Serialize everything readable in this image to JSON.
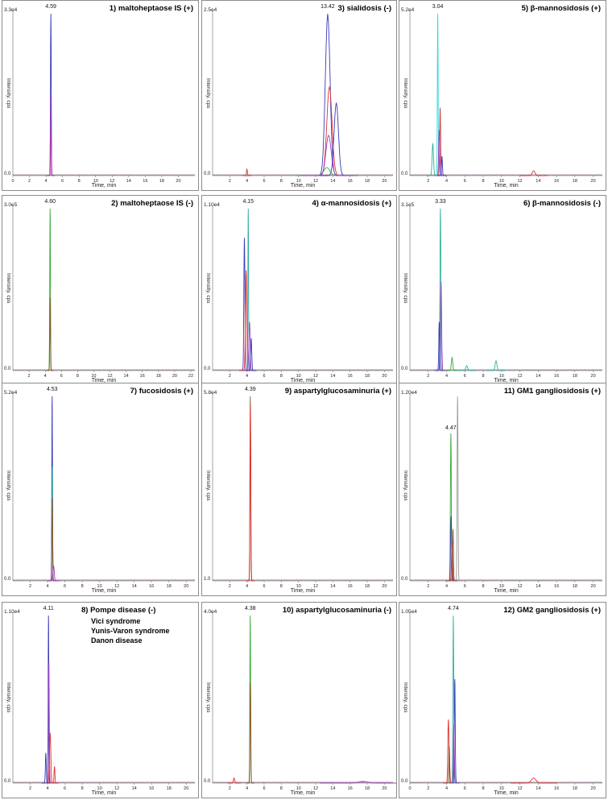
{
  "colors": {
    "blue": "#3a3ab8",
    "red": "#e03030",
    "green": "#3aa83a",
    "purple": "#a040c0",
    "teal": "#30b0a0",
    "cyan": "#30d8d8",
    "brown": "#8a5a2a",
    "gray": "#999999"
  },
  "chart_data": [
    {
      "id": 1,
      "type": "line",
      "title": "1) maltoheptaose IS (+)",
      "xlabel": "Time, min",
      "ylabel": "Intensity, cps",
      "ymax_label": "3.3e4",
      "y0_label": "0.0",
      "peak_label": "4.59",
      "xticks": [
        "0",
        "2",
        "4",
        "6",
        "8",
        "10",
        "12",
        "14",
        "16",
        "18",
        "20"
      ],
      "xlim": [
        0,
        22
      ],
      "peaks": [
        {
          "series": "blue",
          "x": 4.59,
          "y": 1.0,
          "w": 0.09
        },
        {
          "series": "red",
          "x": 4.59,
          "y": 0.35,
          "w": 0.08
        },
        {
          "series": "purple",
          "x": 4.6,
          "y": 0.5,
          "w": 0.08
        }
      ]
    },
    {
      "id": 3,
      "type": "line",
      "title": "3) sialidosis (-)",
      "xlabel": "Time, min",
      "ylabel": "Intensity, cps",
      "ymax_label": "2.5e4",
      "y0_label": "0.0",
      "peak_label": "13.42",
      "xticks": [
        "2",
        "4",
        "6",
        "8",
        "10",
        "12",
        "14",
        "16",
        "18",
        "20"
      ],
      "xlim": [
        0,
        21
      ],
      "peaks": [
        {
          "series": "blue",
          "x": 13.4,
          "y": 1.0,
          "w": 0.55
        },
        {
          "series": "blue",
          "x": 14.4,
          "y": 0.45,
          "w": 0.5
        },
        {
          "series": "red",
          "x": 13.6,
          "y": 0.55,
          "w": 0.6
        },
        {
          "series": "red",
          "x": 4.0,
          "y": 0.04,
          "w": 0.1
        },
        {
          "series": "green",
          "x": 13.3,
          "y": 0.05,
          "w": 0.7
        },
        {
          "series": "purple",
          "x": 13.5,
          "y": 0.25,
          "w": 0.6
        }
      ]
    },
    {
      "id": 5,
      "type": "line",
      "title": "5) β-mannosidosis (+)",
      "xlabel": "Time, min",
      "ylabel": "Intensity, cps",
      "ymax_label": "5.2e4",
      "y0_label": "0.0",
      "peak_label": "3.04",
      "xticks": [
        "2",
        "4",
        "6",
        "8",
        "10",
        "12",
        "14",
        "16",
        "18",
        "20"
      ],
      "xlim": [
        0,
        21
      ],
      "peaks": [
        {
          "series": "cyan",
          "x": 3.04,
          "y": 1.0,
          "w": 0.08
        },
        {
          "series": "teal",
          "x": 2.5,
          "y": 0.2,
          "w": 0.15
        },
        {
          "series": "red",
          "x": 3.3,
          "y": 0.42,
          "w": 0.1
        },
        {
          "series": "purple",
          "x": 3.2,
          "y": 0.28,
          "w": 0.12
        },
        {
          "series": "blue",
          "x": 3.5,
          "y": 0.12,
          "w": 0.1
        },
        {
          "series": "red",
          "x": 13.5,
          "y": 0.03,
          "w": 0.3
        }
      ]
    },
    {
      "id": 2,
      "type": "line",
      "title": "2) maltoheptaose IS (-)",
      "xlabel": "Time, min",
      "ylabel": "Intensity, cps",
      "ymax_label": "3.0e5",
      "y0_label": "0.0",
      "peak_label": "4.60",
      "xticks": [
        "2",
        "4",
        "6",
        "8",
        "10",
        "12",
        "14",
        "16",
        "18",
        "20",
        "22"
      ],
      "xlim": [
        0,
        22.5
      ],
      "peaks": [
        {
          "series": "green",
          "x": 4.6,
          "y": 1.0,
          "w": 0.09
        },
        {
          "series": "brown",
          "x": 4.6,
          "y": 0.45,
          "w": 0.08
        }
      ]
    },
    {
      "id": 4,
      "type": "line",
      "title": "4) α-mannosidosis (+)",
      "xlabel": "Time, min",
      "ylabel": "Intensity, cps",
      "ymax_label": "1.10e4",
      "y0_label": "0.0",
      "peak_label": "4.15",
      "xticks": [
        "2",
        "4",
        "6",
        "8",
        "10",
        "12",
        "14",
        "16",
        "18",
        "20"
      ],
      "xlim": [
        0,
        21
      ],
      "peaks": [
        {
          "series": "teal",
          "x": 4.15,
          "y": 1.0,
          "w": 0.08
        },
        {
          "series": "blue",
          "x": 3.7,
          "y": 0.82,
          "w": 0.12
        },
        {
          "series": "red",
          "x": 3.9,
          "y": 0.62,
          "w": 0.15
        },
        {
          "series": "purple",
          "x": 4.3,
          "y": 0.3,
          "w": 0.15
        },
        {
          "series": "blue",
          "x": 4.5,
          "y": 0.2,
          "w": 0.12
        }
      ]
    },
    {
      "id": 6,
      "type": "line",
      "title": "6) β-mannosidosis (-)",
      "xlabel": "Time, min",
      "ylabel": "Intensity, cps",
      "ymax_label": "3.1e5",
      "y0_label": "0.0",
      "peak_label": "3.33",
      "xticks": [
        "2",
        "4",
        "6",
        "8",
        "10",
        "12",
        "14",
        "16",
        "18",
        "20"
      ],
      "xlim": [
        0,
        21
      ],
      "peaks": [
        {
          "series": "teal",
          "x": 3.33,
          "y": 1.0,
          "w": 0.1
        },
        {
          "series": "purple",
          "x": 3.4,
          "y": 0.55,
          "w": 0.12
        },
        {
          "series": "blue",
          "x": 3.2,
          "y": 0.3,
          "w": 0.1
        },
        {
          "series": "green",
          "x": 4.6,
          "y": 0.08,
          "w": 0.15
        },
        {
          "series": "teal",
          "x": 9.4,
          "y": 0.06,
          "w": 0.2
        },
        {
          "series": "teal",
          "x": 6.2,
          "y": 0.03,
          "w": 0.2
        }
      ]
    },
    {
      "id": 7,
      "type": "line",
      "title": "7) fucosidosis (+)",
      "xlabel": "Time, min",
      "ylabel": "Intensity, cps",
      "ymax_label": "5.2e4",
      "y0_label": "0.0",
      "peak_label": "4.53",
      "xticks": [
        "2",
        "4",
        "6",
        "8",
        "10",
        "12",
        "14",
        "16",
        "18",
        "20"
      ],
      "xlim": [
        0,
        21
      ],
      "peaks": [
        {
          "series": "blue",
          "x": 4.53,
          "y": 1.0,
          "w": 0.08
        },
        {
          "series": "teal",
          "x": 4.55,
          "y": 0.62,
          "w": 0.08
        },
        {
          "series": "brown",
          "x": 4.55,
          "y": 0.45,
          "w": 0.08
        },
        {
          "series": "purple",
          "x": 4.7,
          "y": 0.08,
          "w": 0.15
        }
      ]
    },
    {
      "id": 9,
      "type": "line",
      "title": "9) aspartylglucosaminuria (+)",
      "xlabel": "Time, min",
      "ylabel": "Intensity, cps",
      "ymax_label": "5.8e4",
      "y0_label": "1.0",
      "peak_label": "4.39",
      "xticks": [
        "2",
        "4",
        "6",
        "8",
        "10",
        "12",
        "14",
        "16",
        "18",
        "20"
      ],
      "xlim": [
        0,
        21
      ],
      "peaks": [
        {
          "series": "brown",
          "x": 4.39,
          "y": 1.0,
          "w": 0.09
        },
        {
          "series": "red",
          "x": 4.4,
          "y": 0.95,
          "w": 0.1
        }
      ]
    },
    {
      "id": 11,
      "type": "line",
      "title": "11) GM1 gangliosidosis (+)",
      "xlabel": "Time, min",
      "ylabel": "Intensity, cps",
      "ymax_label": "1.20e4",
      "y0_label": "0.0",
      "peak_label": "4.47",
      "xticks": [
        "2",
        "4",
        "6",
        "8",
        "10",
        "12",
        "14",
        "16",
        "18",
        "20"
      ],
      "xlim": [
        0,
        21
      ],
      "peaks": [
        {
          "series": "gray",
          "x": 5.2,
          "y": 1.0,
          "w": 0.1
        },
        {
          "series": "green",
          "x": 4.47,
          "y": 0.8,
          "w": 0.1
        },
        {
          "series": "blue",
          "x": 4.5,
          "y": 0.35,
          "w": 0.12
        },
        {
          "series": "red",
          "x": 4.6,
          "y": 0.2,
          "w": 0.12
        },
        {
          "series": "brown",
          "x": 4.7,
          "y": 0.28,
          "w": 0.1
        }
      ]
    },
    {
      "id": 8,
      "type": "line",
      "title": "8) Pompe disease (-)",
      "extra_lines": [
        "Vici syndrome",
        "Yunis-Varon syndrome",
        "Danon disease"
      ],
      "xlabel": "Time, min",
      "ylabel": "Intensity, cps",
      "ymax_label": "1.10e4",
      "y0_label": "0.0",
      "peak_label": "4.11",
      "xticks": [
        "2",
        "4",
        "6",
        "8",
        "10",
        "12",
        "14",
        "16",
        "18",
        "20"
      ],
      "xlim": [
        0,
        21
      ],
      "peaks": [
        {
          "series": "blue",
          "x": 4.11,
          "y": 1.0,
          "w": 0.08
        },
        {
          "series": "purple",
          "x": 4.15,
          "y": 0.72,
          "w": 0.1
        },
        {
          "series": "red",
          "x": 4.3,
          "y": 0.3,
          "w": 0.15
        },
        {
          "series": "blue",
          "x": 3.8,
          "y": 0.18,
          "w": 0.1
        },
        {
          "series": "red",
          "x": 4.8,
          "y": 0.1,
          "w": 0.1
        }
      ]
    },
    {
      "id": 10,
      "type": "line",
      "title": "10) aspartylglucosaminuria (-)",
      "xlabel": "Time, min",
      "ylabel": "Intensity, cps",
      "ymax_label": "4.0e4",
      "y0_label": "0.0",
      "peak_label": "4.38",
      "xticks": [
        "2",
        "4",
        "6",
        "8",
        "10",
        "12",
        "14",
        "16",
        "18",
        "20"
      ],
      "xlim": [
        0,
        21
      ],
      "peaks": [
        {
          "series": "green",
          "x": 4.38,
          "y": 1.0,
          "w": 0.09
        },
        {
          "series": "brown",
          "x": 4.4,
          "y": 0.6,
          "w": 0.09
        },
        {
          "series": "red",
          "x": 2.5,
          "y": 0.03,
          "w": 0.15
        },
        {
          "series": "purple",
          "x": 17.5,
          "y": 0.01,
          "w": 1.0
        }
      ]
    },
    {
      "id": 12,
      "type": "line",
      "title": "12) GM2 gangliosidosis (+)",
      "xlabel": "Time, min",
      "ylabel": "Intensity, cps",
      "ymax_label": "1.05e4",
      "y0_label": "0.0",
      "peak_label": "4.74",
      "xticks": [
        "0",
        "2",
        "4",
        "6",
        "8",
        "10",
        "12",
        "14",
        "16",
        "18",
        "20"
      ],
      "xlim": [
        0,
        21
      ],
      "peaks": [
        {
          "series": "teal",
          "x": 4.74,
          "y": 1.0,
          "w": 0.1
        },
        {
          "series": "blue",
          "x": 4.9,
          "y": 0.62,
          "w": 0.1
        },
        {
          "series": "red",
          "x": 4.2,
          "y": 0.38,
          "w": 0.12
        },
        {
          "series": "brown",
          "x": 4.3,
          "y": 0.22,
          "w": 0.1
        },
        {
          "series": "purple",
          "x": 4.8,
          "y": 0.35,
          "w": 0.1
        },
        {
          "series": "red",
          "x": 13.5,
          "y": 0.03,
          "w": 0.5
        }
      ]
    }
  ]
}
